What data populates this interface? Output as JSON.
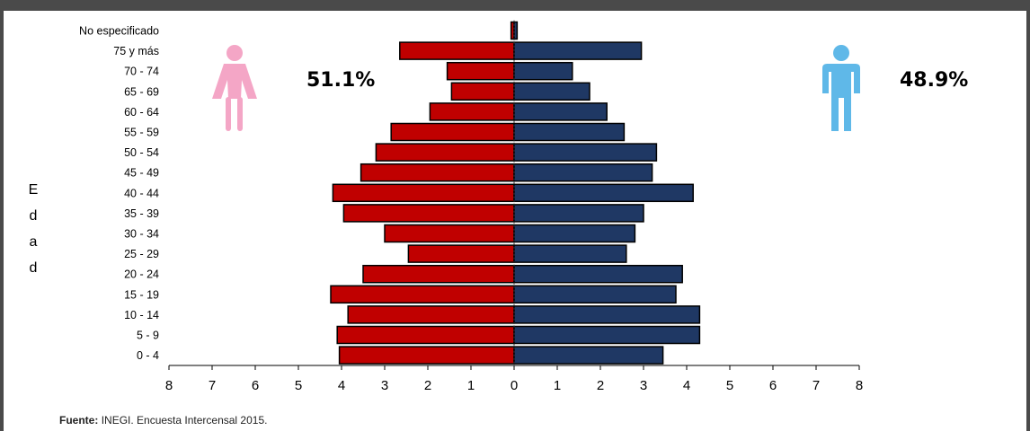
{
  "chart_data": {
    "type": "bar",
    "orientation": "horizontal-population-pyramid",
    "ylabel": "Edad",
    "categories": [
      "No especificado",
      "75 y más",
      "70 - 74",
      "65 - 69",
      "60 - 64",
      "55 - 59",
      "50 - 54",
      "45 - 49",
      "40 - 44",
      "35 - 39",
      "30 - 34",
      "25 - 29",
      "20 - 24",
      "15 - 19",
      "10 - 14",
      "5 - 9",
      "0 - 4"
    ],
    "series": [
      {
        "values": [
          0.07,
          2.65,
          1.55,
          1.45,
          1.95,
          2.85,
          3.2,
          3.55,
          4.2,
          3.95,
          3.0,
          2.45,
          3.5,
          4.25,
          3.85,
          4.1,
          4.05
        ],
        "color": "#c00000",
        "side": "left"
      },
      {
        "values": [
          0.07,
          2.95,
          1.35,
          1.75,
          2.15,
          2.55,
          3.3,
          3.2,
          4.15,
          3.0,
          2.8,
          2.6,
          3.9,
          3.75,
          4.3,
          4.3,
          3.45
        ],
        "color": "#1f3864",
        "side": "right"
      }
    ],
    "xlim": [
      -8,
      8
    ],
    "xtick_labels": [
      "8",
      "7",
      "6",
      "5",
      "4",
      "3",
      "2",
      "1",
      "0",
      "1",
      "2",
      "3",
      "4",
      "5",
      "6",
      "7",
      "8"
    ],
    "annotations": {
      "female_pct": "51.1%",
      "male_pct": "48.9%"
    },
    "female_icon": "woman-icon",
    "male_icon": "man-icon",
    "female_icon_color": "#f4a6c6",
    "male_icon_color": "#5fb8e8"
  },
  "source": {
    "label": "Fuente:",
    "text": "INEGI. Encuesta Intercensal 2015."
  }
}
